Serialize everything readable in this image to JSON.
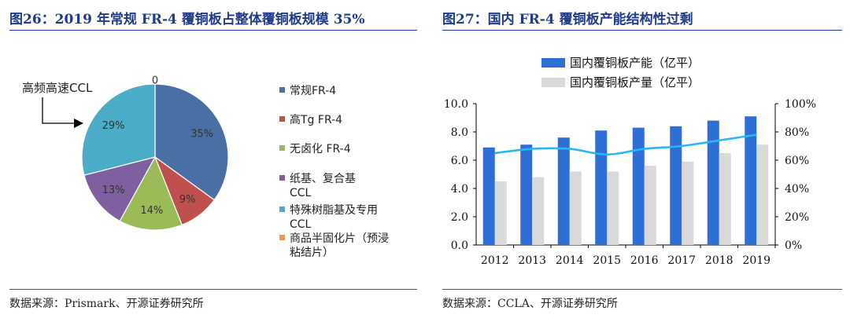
{
  "left": {
    "title": "图26：2019 年常规 FR-4 覆铜板占整体覆铜板规模 35%",
    "source": "数据来源：Prismark、开源证券研究所",
    "callout": "高频高速CCL"
  },
  "right": {
    "title": "图27：国内 FR-4 覆铜板产能结构性过剩",
    "source": "数据来源：CCLA、开源证券研究所"
  },
  "chart_data": [
    {
      "type": "pie",
      "labels": [
        "常规FR-4",
        "高Tg FR-4",
        "无卤化 FR-4",
        "纸基、复合基CCL",
        "特殊树脂基及专用CCL",
        "商品半固化片（预浸粘结片）"
      ],
      "values": [
        35,
        9,
        14,
        13,
        29,
        0
      ],
      "data_labels": [
        "35%",
        "9%",
        "14%",
        "13%",
        "29%",
        "0"
      ],
      "colors": [
        "#4a6fa5",
        "#c0504d",
        "#9bbb59",
        "#7e5fa0",
        "#4aacc6",
        "#f79646"
      ],
      "legend_position": "right"
    },
    {
      "type": "bar",
      "categories": [
        "2012",
        "2013",
        "2014",
        "2015",
        "2016",
        "2017",
        "2018",
        "2019"
      ],
      "series": [
        {
          "name": "国内覆铜板产能（亿平）",
          "type": "bar",
          "axis": "left",
          "color": "#2e6fd6",
          "values": [
            6.9,
            7.1,
            7.6,
            8.1,
            8.3,
            8.4,
            8.8,
            9.1
          ]
        },
        {
          "name": "国内覆铜板产量（亿平）",
          "type": "bar",
          "axis": "left",
          "color": "#d9d9d9",
          "values": [
            4.5,
            4.8,
            5.2,
            5.2,
            5.6,
            5.9,
            6.5,
            7.1
          ]
        },
        {
          "type": "line",
          "axis": "right",
          "color": "#29b6f6",
          "values": [
            0.65,
            0.68,
            0.68,
            0.64,
            0.68,
            0.7,
            0.74,
            0.78
          ]
        }
      ],
      "ylim": [
        0,
        10
      ],
      "y_ticks": [
        "0.0",
        "2.0",
        "4.0",
        "6.0",
        "8.0",
        "10.0"
      ],
      "y2lim": [
        0,
        1
      ],
      "y2_ticks": [
        "0%",
        "20%",
        "40%",
        "60%",
        "80%",
        "100%"
      ],
      "legend_position": "top"
    }
  ]
}
